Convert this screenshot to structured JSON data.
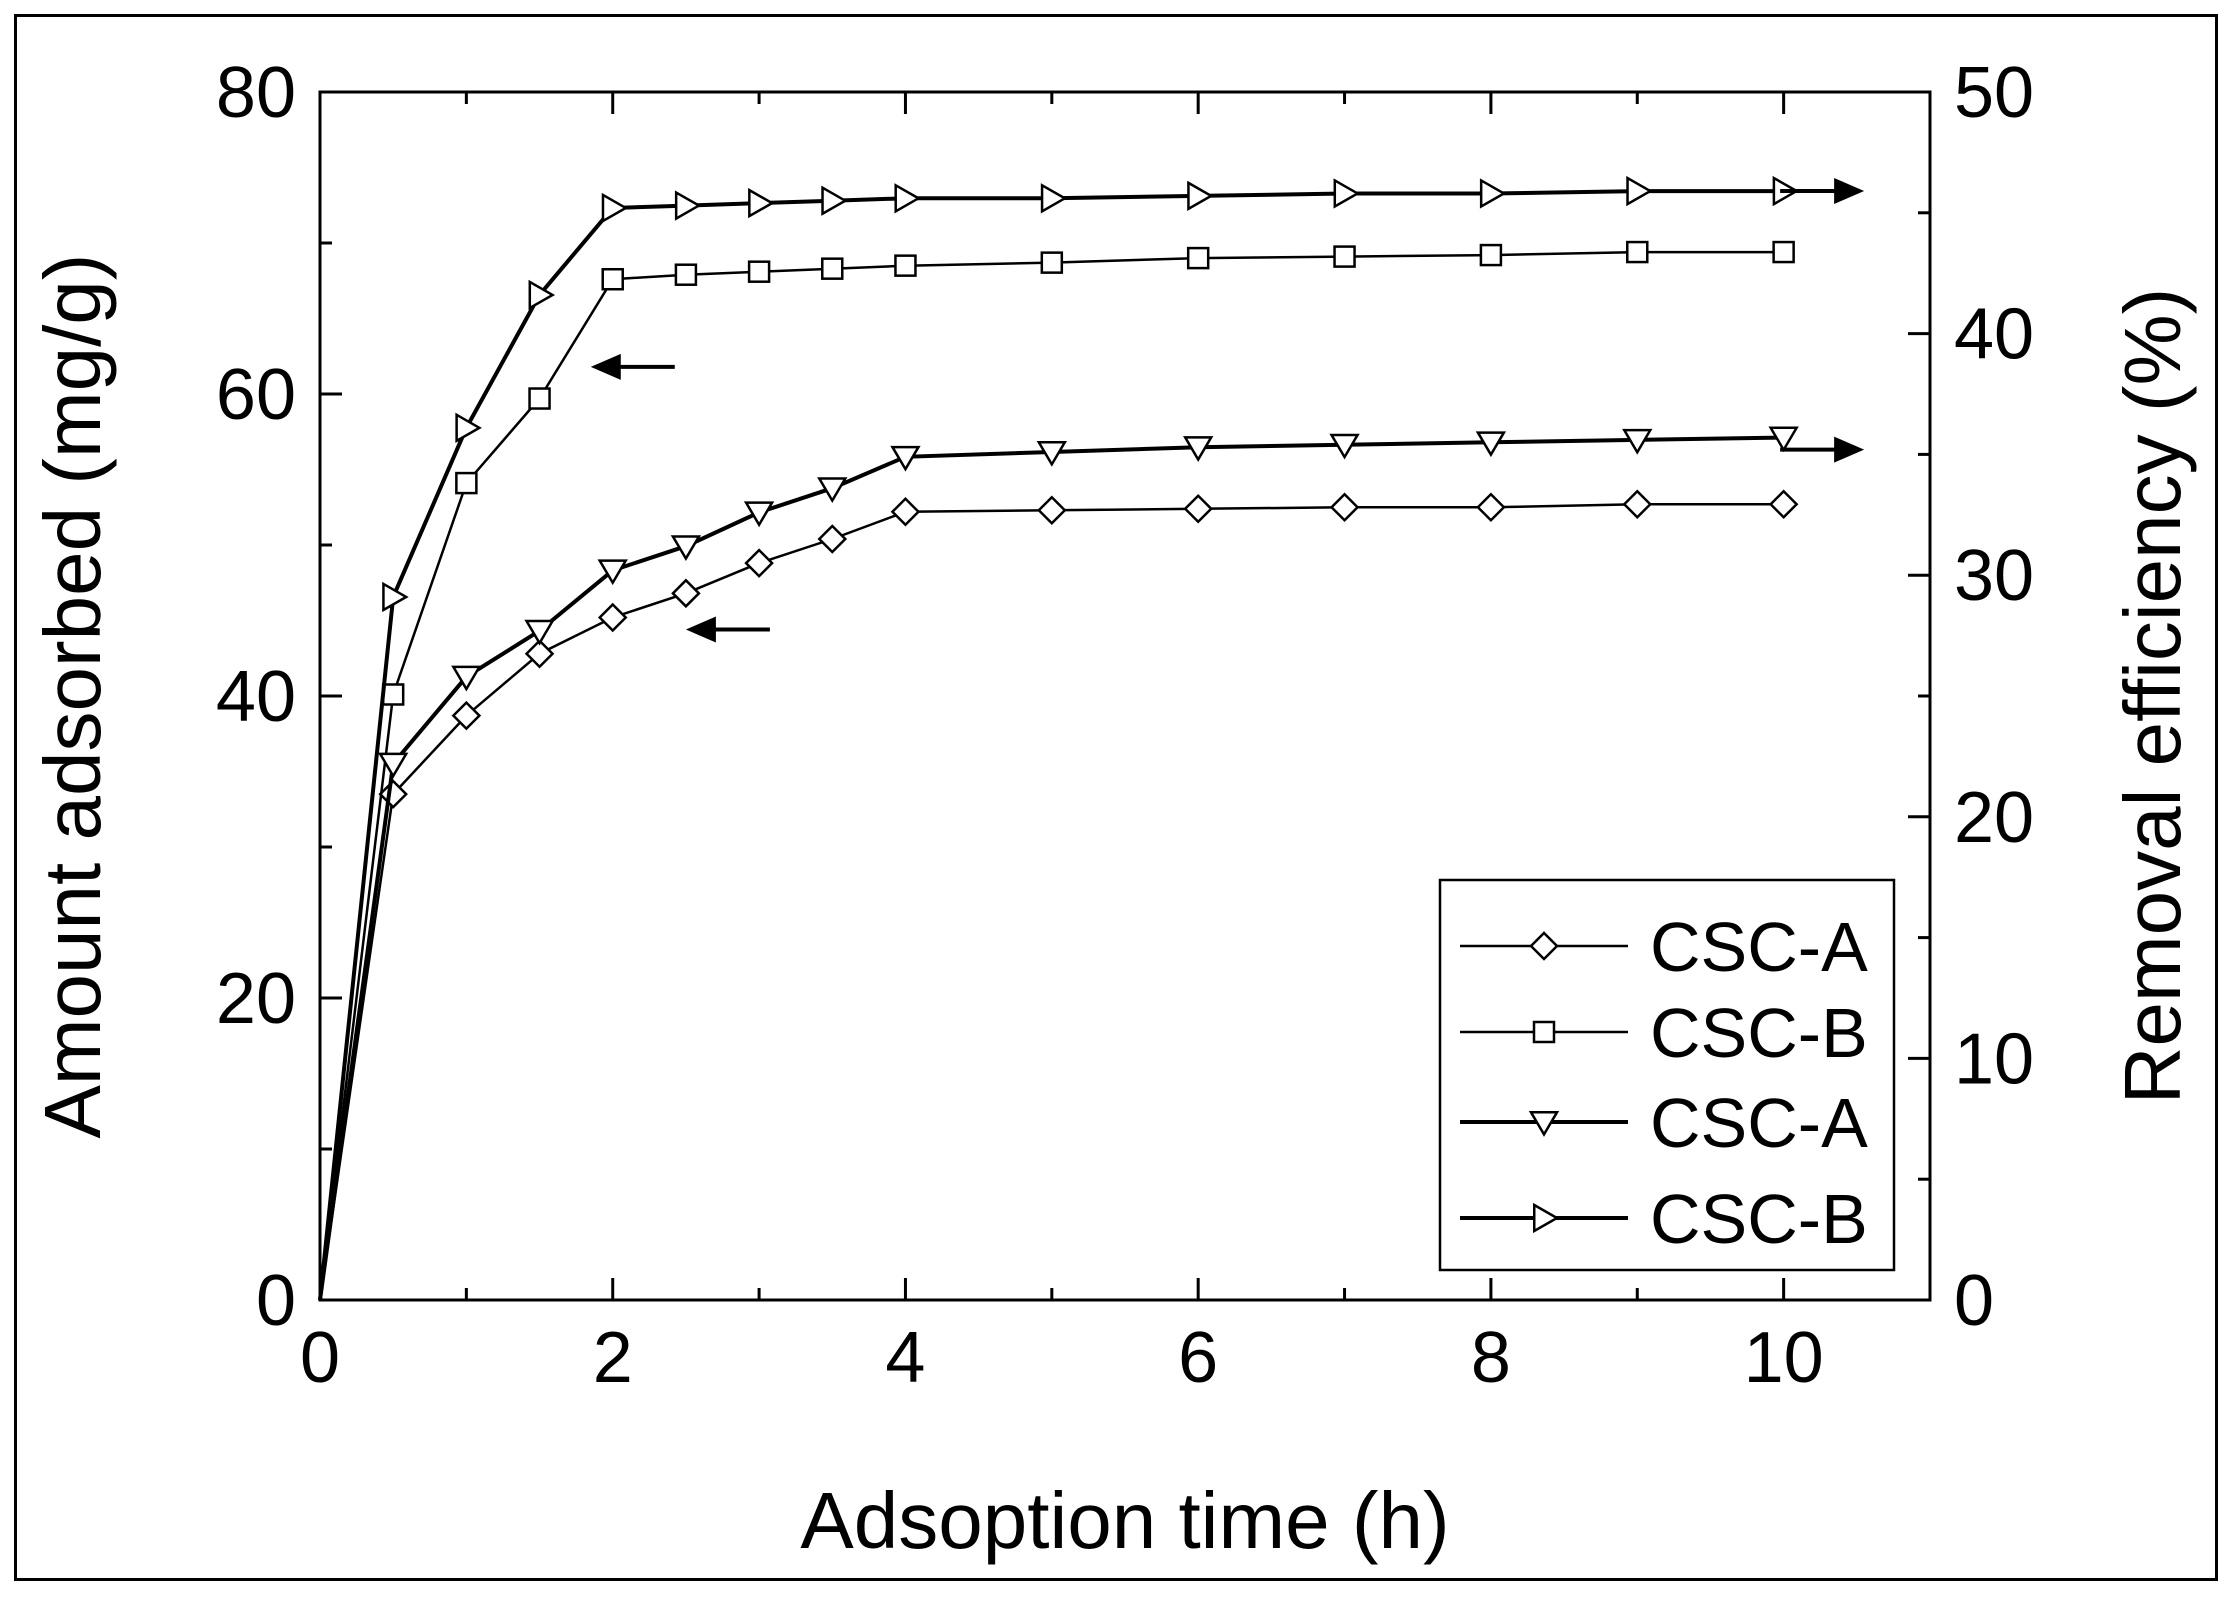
{
  "chart_data": {
    "type": "line",
    "xlabel": "Adsoption time (h)",
    "ylabel_left": "Amount adsorbed (mg/g)",
    "ylabel_right": "Removal efficiency (%)",
    "xlim": [
      0,
      11
    ],
    "ylim_left": [
      0,
      80
    ],
    "ylim_right": [
      0,
      50
    ],
    "x_ticks": [
      0,
      2,
      4,
      6,
      8,
      10
    ],
    "y_left_ticks": [
      0,
      20,
      40,
      60,
      80
    ],
    "y_right_ticks": [
      0,
      10,
      20,
      30,
      40,
      50
    ],
    "x_tick_labels": [
      "0",
      "2",
      "4",
      "6",
      "8",
      "10"
    ],
    "y_left_tick_labels": [
      "0",
      "20",
      "40",
      "60",
      "80"
    ],
    "y_right_tick_labels": [
      "0",
      "10",
      "20",
      "30",
      "40",
      "50"
    ],
    "grid": false,
    "legend_position": "bottom-right",
    "series": [
      {
        "name": "CSC-A",
        "axis": "left",
        "marker": "diamond",
        "line_weight": "thin",
        "x": [
          0,
          0.5,
          1,
          1.5,
          2,
          2.5,
          3,
          3.5,
          4,
          5,
          6,
          7,
          8,
          9,
          10
        ],
        "values": [
          0,
          33.5,
          38.7,
          42.8,
          45.2,
          46.8,
          48.8,
          50.4,
          52.2,
          52.3,
          52.4,
          52.5,
          52.5,
          52.7,
          52.7
        ]
      },
      {
        "name": "CSC-B",
        "axis": "left",
        "marker": "square",
        "line_weight": "thin",
        "x": [
          0,
          0.5,
          1,
          1.5,
          2,
          2.5,
          3,
          3.5,
          4,
          5,
          6,
          7,
          8,
          9,
          10
        ],
        "values": [
          0,
          40.1,
          54.1,
          59.7,
          67.6,
          67.9,
          68.1,
          68.3,
          68.5,
          68.7,
          69.0,
          69.1,
          69.2,
          69.4,
          69.4
        ]
      },
      {
        "name": "CSC-A",
        "axis": "right",
        "marker": "triangle-down",
        "line_weight": "thick",
        "x": [
          0,
          0.5,
          1,
          1.5,
          2,
          2.5,
          3,
          3.5,
          4,
          5,
          6,
          7,
          8,
          9,
          10
        ],
        "values": [
          0,
          22.2,
          25.8,
          27.7,
          30.2,
          31.2,
          32.6,
          33.6,
          34.9,
          35.1,
          35.3,
          35.4,
          35.5,
          35.6,
          35.7
        ]
      },
      {
        "name": "CSC-B",
        "axis": "right",
        "marker": "triangle-right",
        "line_weight": "thick",
        "x": [
          0,
          0.5,
          1,
          1.5,
          2,
          2.5,
          3,
          3.5,
          4,
          5,
          6,
          7,
          8,
          9,
          10
        ],
        "values": [
          0,
          29.1,
          36.1,
          41.6,
          45.2,
          45.3,
          45.4,
          45.5,
          45.6,
          45.6,
          45.7,
          45.8,
          45.8,
          45.9,
          45.9
        ]
      }
    ],
    "annotations": [
      {
        "type": "arrow",
        "direction": "left",
        "points_to": "CSC-B left axis",
        "at": {
          "x": 1.85,
          "y": 61.8
        }
      },
      {
        "type": "arrow",
        "direction": "left",
        "points_to": "CSC-A left axis",
        "at": {
          "x": 2.5,
          "y": 44.4
        }
      },
      {
        "type": "arrow",
        "direction": "right",
        "points_to": "CSC-B right axis",
        "at": {
          "x": 10.55,
          "y": 45.9
        }
      },
      {
        "type": "arrow",
        "direction": "right",
        "points_to": "CSC-A right axis",
        "at": {
          "x": 10.55,
          "y": 35.2
        }
      }
    ]
  }
}
